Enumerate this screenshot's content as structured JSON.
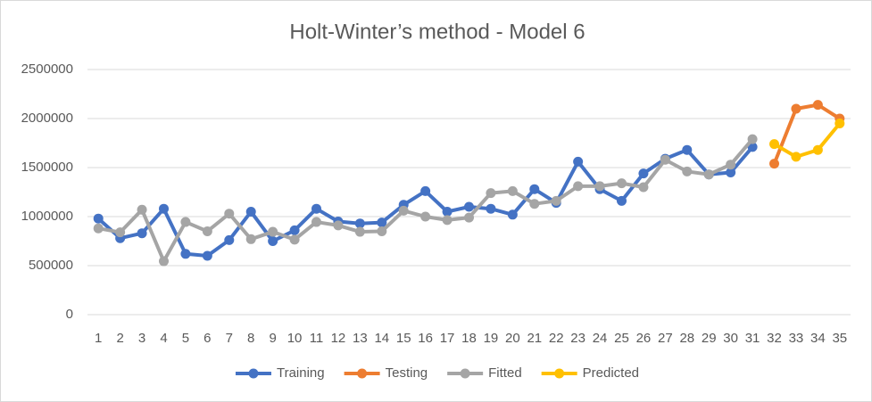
{
  "chart_data": {
    "type": "line",
    "title": "Holt-Winter’s method - Model 6",
    "categories": [
      "1",
      "2",
      "3",
      "4",
      "5",
      "6",
      "7",
      "8",
      "9",
      "10",
      "11",
      "12",
      "13",
      "14",
      "15",
      "16",
      "17",
      "18",
      "19",
      "20",
      "21",
      "22",
      "23",
      "24",
      "25",
      "26",
      "27",
      "28",
      "29",
      "30",
      "31",
      "32",
      "33",
      "34",
      "35"
    ],
    "series": [
      {
        "name": "Training",
        "color": "#4472c4",
        "values": [
          980000,
          780000,
          830000,
          1080000,
          620000,
          600000,
          760000,
          1050000,
          750000,
          860000,
          1080000,
          950000,
          930000,
          940000,
          1120000,
          1260000,
          1050000,
          1100000,
          1080000,
          1020000,
          1280000,
          1140000,
          1560000,
          1280000,
          1160000,
          1440000,
          1590000,
          1680000,
          1430000,
          1450000,
          1710000,
          null,
          null,
          null,
          null
        ]
      },
      {
        "name": "Testing",
        "color": "#ed7d31",
        "values": [
          null,
          null,
          null,
          null,
          null,
          null,
          null,
          null,
          null,
          null,
          null,
          null,
          null,
          null,
          null,
          null,
          null,
          null,
          null,
          null,
          null,
          null,
          null,
          null,
          null,
          null,
          null,
          null,
          null,
          null,
          null,
          1540000,
          2100000,
          2140000,
          2000000
        ]
      },
      {
        "name": "Fitted",
        "color": "#a5a5a5",
        "values": [
          880000,
          840000,
          1070000,
          545000,
          945000,
          850000,
          1030000,
          770000,
          845000,
          765000,
          945000,
          910000,
          845000,
          850000,
          1060000,
          1000000,
          965000,
          990000,
          1240000,
          1260000,
          1130000,
          1160000,
          1310000,
          1310000,
          1340000,
          1300000,
          1580000,
          1460000,
          1430000,
          1530000,
          1790000,
          null,
          null,
          null,
          null
        ]
      },
      {
        "name": "Predicted",
        "color": "#ffc000",
        "values": [
          null,
          null,
          null,
          null,
          null,
          null,
          null,
          null,
          null,
          null,
          null,
          null,
          null,
          null,
          null,
          null,
          null,
          null,
          null,
          null,
          null,
          null,
          null,
          null,
          null,
          null,
          null,
          null,
          null,
          null,
          null,
          1740000,
          1610000,
          1680000,
          1950000
        ]
      }
    ],
    "ylim": [
      0,
      2500000
    ],
    "yticks": [
      0,
      500000,
      1000000,
      1500000,
      2000000,
      2500000
    ],
    "grid": true,
    "legend": "bottom"
  }
}
